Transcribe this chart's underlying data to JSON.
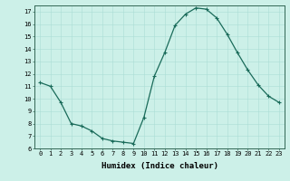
{
  "x": [
    0,
    1,
    2,
    3,
    4,
    5,
    6,
    7,
    8,
    9,
    10,
    11,
    12,
    13,
    14,
    15,
    16,
    17,
    18,
    19,
    20,
    21,
    22,
    23
  ],
  "y": [
    11.3,
    11.0,
    9.7,
    8.0,
    7.8,
    7.4,
    6.8,
    6.6,
    6.5,
    6.4,
    8.5,
    11.8,
    13.7,
    15.9,
    16.8,
    17.3,
    17.2,
    16.5,
    15.2,
    13.7,
    12.3,
    11.1,
    10.2,
    9.7
  ],
  "line_color": "#1a6b5a",
  "marker": "+",
  "marker_size": 3,
  "marker_linewidth": 0.8,
  "bg_color": "#ccf0e8",
  "grid_color": "#aaddd5",
  "xlabel": "Humidex (Indice chaleur)",
  "ylim": [
    6,
    17.5
  ],
  "xlim": [
    -0.5,
    23.5
  ],
  "yticks": [
    6,
    7,
    8,
    9,
    10,
    11,
    12,
    13,
    14,
    15,
    16,
    17
  ],
  "xticks": [
    0,
    1,
    2,
    3,
    4,
    5,
    6,
    7,
    8,
    9,
    10,
    11,
    12,
    13,
    14,
    15,
    16,
    17,
    18,
    19,
    20,
    21,
    22,
    23
  ],
  "tick_fontsize": 5.0,
  "xlabel_fontsize": 6.5,
  "spine_color": "#336655",
  "line_width": 0.9
}
